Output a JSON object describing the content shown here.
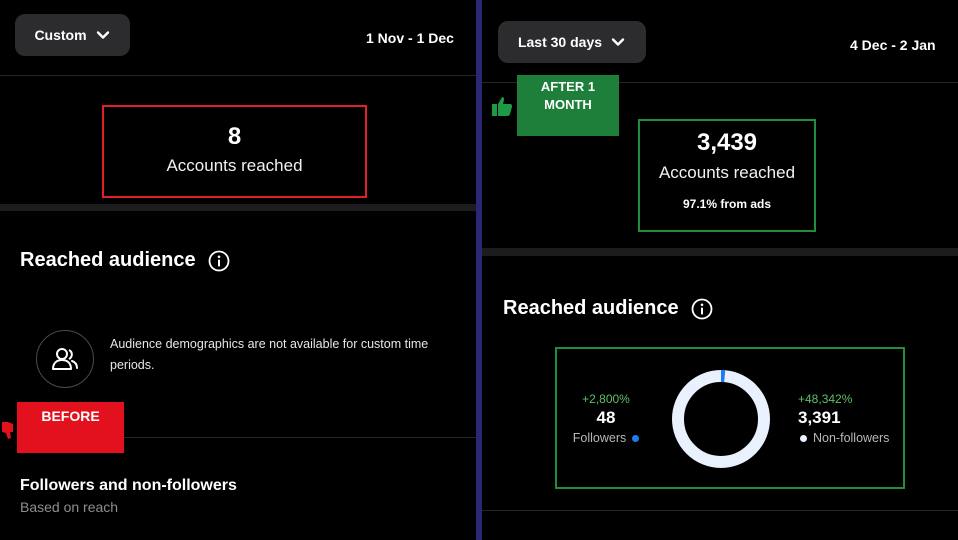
{
  "before": {
    "dropdown_label": "Custom",
    "date_range": "1 Nov - 1 Dec",
    "accounts_reached_value": "8",
    "accounts_reached_label": "Accounts reached",
    "reached_audience_heading": "Reached audience",
    "notice_text": "Audience demographics are not available for custom time periods.",
    "stamp_label": "BEFORE",
    "followers_title": "Followers and non-followers",
    "followers_subtitle": "Based on reach"
  },
  "after": {
    "dropdown_label": "Last 30 days",
    "date_range": "4 Dec - 2 Jan",
    "stamp_line1": "AFTER 1",
    "stamp_line2": "MONTH",
    "accounts_reached_value": "3,439",
    "accounts_reached_label": "Accounts reached",
    "from_ads": "97.1% from ads",
    "reached_audience_heading": "Reached audience",
    "followers": {
      "change": "+2,800%",
      "value": "48",
      "label": "Followers"
    },
    "non_followers": {
      "change": "+48,342%",
      "value": "3,391",
      "label": "Non-followers"
    },
    "donut": {
      "followers_fraction": 0.014,
      "followers_color": "#1e7cf2",
      "non_followers_color": "#e8f1fd"
    }
  },
  "colors": {
    "red_highlight": "#e0202a",
    "green_highlight": "#1f8f3c",
    "divider": "#2a2775"
  },
  "icons": [
    "chevron-down-icon",
    "info-icon",
    "people-icon",
    "thumbs-up-icon",
    "thumbs-down-icon"
  ]
}
